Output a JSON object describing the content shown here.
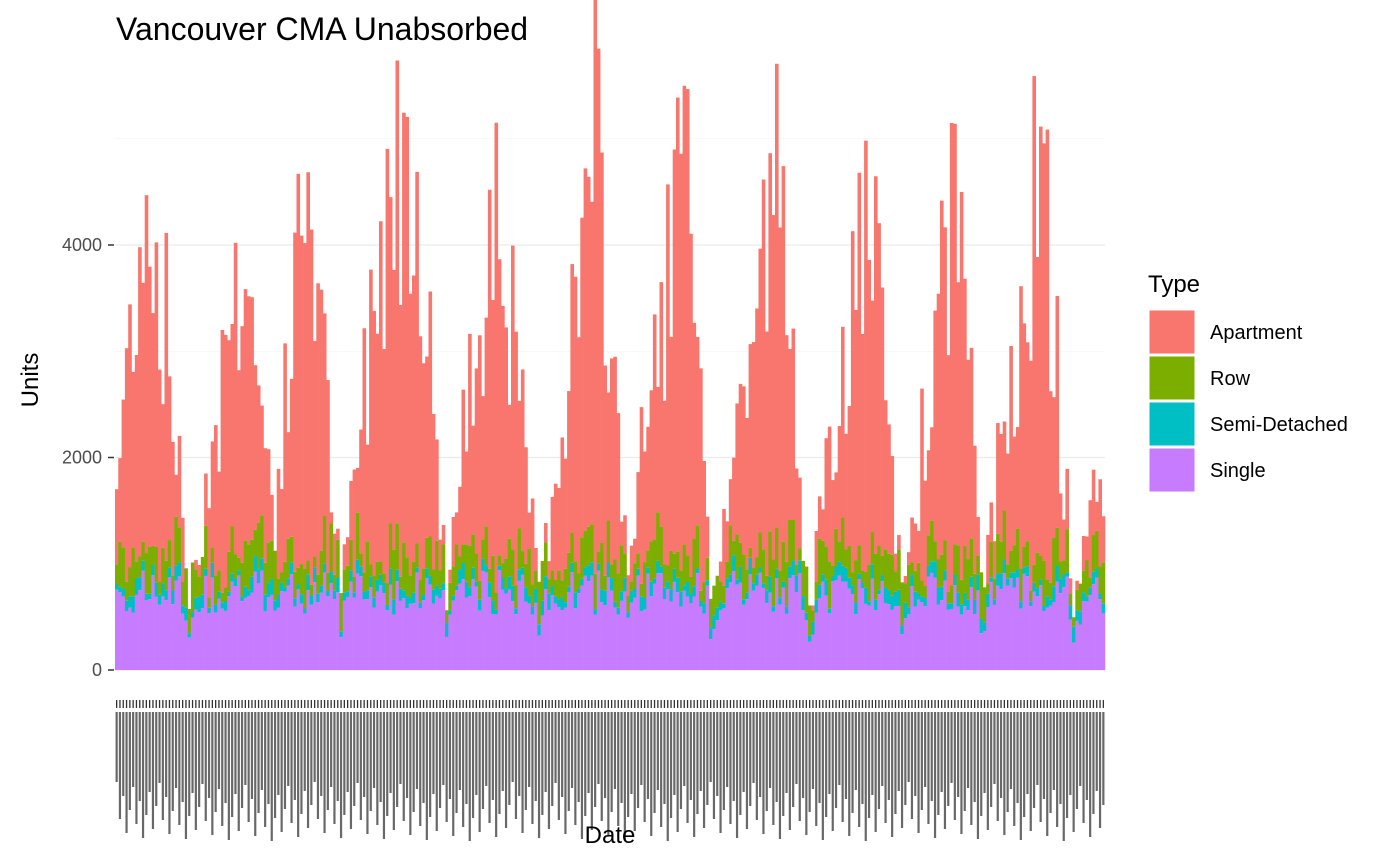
{
  "chart_data": {
    "type": "bar",
    "stacked": true,
    "title": "Vancouver CMA Unabsorbed",
    "xlabel": "Date",
    "ylabel": "Units",
    "ylim": [
      0,
      5600
    ],
    "y_ticks": [
      0,
      2000,
      4000
    ],
    "grid": true,
    "legend": {
      "title": "Type",
      "placement": "right"
    },
    "x_tick_labels_note": "Dense monthly date tick labels rotated 90 degrees; individually illegible in source",
    "series": [
      {
        "name": "Apartment",
        "color": "#F8766D"
      },
      {
        "name": "Row",
        "color": "#7CAE00"
      },
      {
        "name": "Semi-Detached",
        "color": "#00BFC4"
      },
      {
        "name": "Single",
        "color": "#C77CFF"
      }
    ],
    "n_periods": 300,
    "approx_totals_profile": [
      {
        "period": 0,
        "total": 1850
      },
      {
        "period": 8,
        "total": 4900
      },
      {
        "period": 15,
        "total": 3500
      },
      {
        "period": 22,
        "total": 700
      },
      {
        "period": 38,
        "total": 4300
      },
      {
        "period": 48,
        "total": 1500
      },
      {
        "period": 58,
        "total": 5200
      },
      {
        "period": 68,
        "total": 700
      },
      {
        "period": 82,
        "total": 4950
      },
      {
        "period": 90,
        "total": 5450
      },
      {
        "period": 100,
        "total": 800
      },
      {
        "period": 115,
        "total": 5100
      },
      {
        "period": 128,
        "total": 700
      },
      {
        "period": 145,
        "total": 5350
      },
      {
        "period": 155,
        "total": 1100
      },
      {
        "period": 172,
        "total": 5300
      },
      {
        "period": 180,
        "total": 650
      },
      {
        "period": 200,
        "total": 5050
      },
      {
        "period": 210,
        "total": 700
      },
      {
        "period": 228,
        "total": 4750
      },
      {
        "period": 238,
        "total": 700
      },
      {
        "period": 255,
        "total": 5050
      },
      {
        "period": 262,
        "total": 700
      },
      {
        "period": 280,
        "total": 5200
      },
      {
        "period": 290,
        "total": 700
      },
      {
        "period": 299,
        "total": 2200
      }
    ]
  }
}
